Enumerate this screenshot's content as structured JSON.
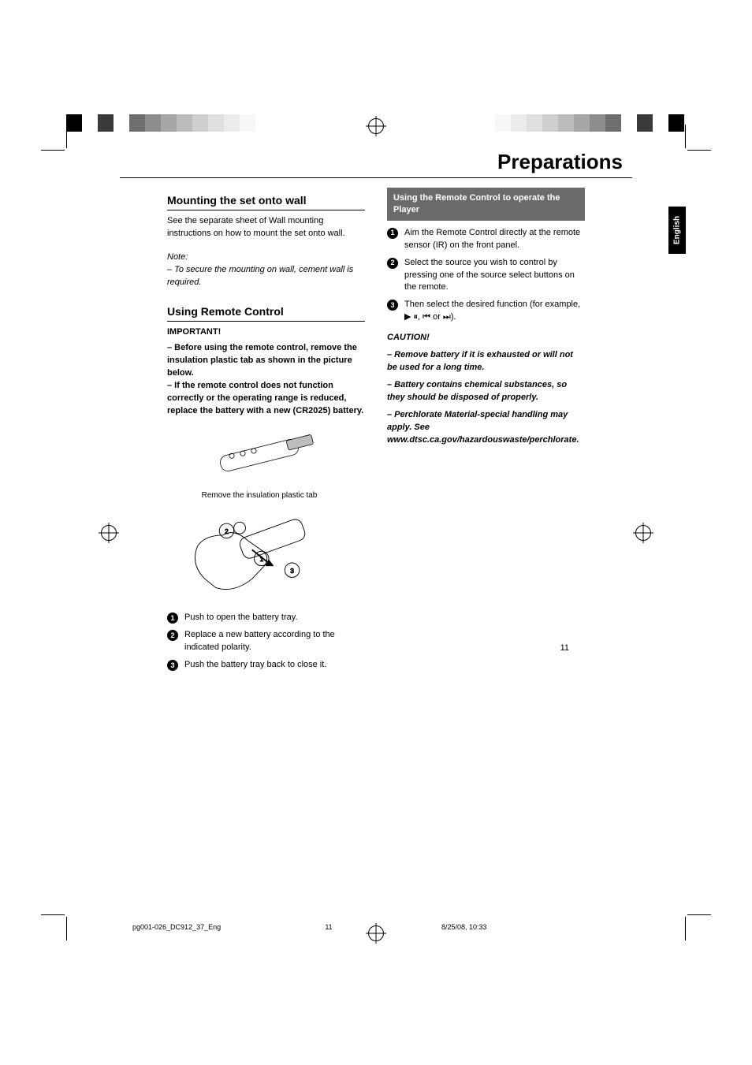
{
  "page": {
    "title": "Preparations",
    "number": "11",
    "lang_tab": "English"
  },
  "left_col": {
    "mounting": {
      "heading": "Mounting the set onto wall",
      "body": "See the separate sheet of Wall mounting instructions on how to mount the set onto wall.",
      "note_label": "Note:",
      "note_body": "–  To secure the mounting on wall, cement wall is required."
    },
    "remote": {
      "heading": "Using Remote Control",
      "important_label": "IMPORTANT!",
      "bullet1": "–  Before using the remote control, remove the insulation plastic tab as shown in the picture below.",
      "bullet2": "–  If the remote control does not function correctly or the operating range is reduced, replace the battery with a new (CR2025) battery.",
      "illus_caption": "Remove the insulation plastic tab",
      "steps": [
        "Push to open the battery tray.",
        "Replace a new battery according to the indicated polarity.",
        "Push the battery tray back to close it."
      ]
    }
  },
  "right_col": {
    "box_heading": "Using the Remote Control to operate the Player",
    "steps": [
      "Aim the Remote Control directly at the remote sensor (IR) on the front panel.",
      "Select the source you wish to control by pressing one of the source select buttons on the remote.",
      "Then select the desired function (for example, ▶ ⏸, ⏮ or ⏭)."
    ],
    "caution_label": "CAUTION!",
    "cautions": [
      "–  Remove battery if it is exhausted or will not be used for a long time.",
      "–  Battery contains chemical substances, so they should be disposed of properly.",
      "–  Perchlorate Material-special handling may apply. See www.dtsc.ca.gov/hazardouswaste/perchlorate."
    ]
  },
  "footer": {
    "left": "pg001-026_DC912_37_Eng",
    "mid": "11",
    "right": "8/25/08, 10:33"
  },
  "print_colors_left": [
    "#000000",
    "#ffffff",
    "#3a3a3a",
    "#ffffff",
    "#6e6e6e",
    "#8d8d8d",
    "#a6a6a6",
    "#bcbcbc",
    "#cfcfcf",
    "#dfdfdf",
    "#ececec",
    "#f6f6f6"
  ],
  "print_colors_right": [
    "#f6f6f6",
    "#ececec",
    "#dfdfdf",
    "#cfcfcf",
    "#bcbcbc",
    "#a6a6a6",
    "#8d8d8d",
    "#6e6e6e",
    "#ffffff",
    "#3a3a3a",
    "#ffffff",
    "#000000"
  ]
}
